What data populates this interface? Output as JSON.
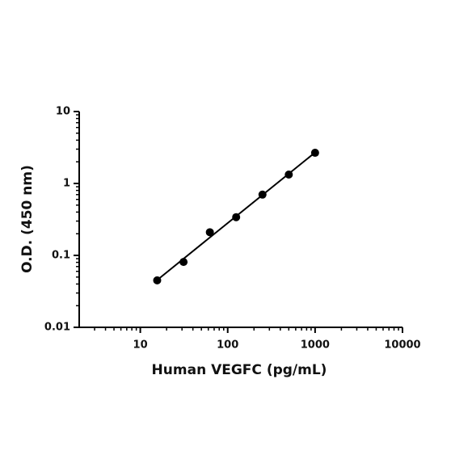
{
  "chart_data": {
    "type": "scatter",
    "x_label": "Human VEGFC (pg/mL)",
    "y_label": "O.D. (450 nm)",
    "x_log": true,
    "y_log": true,
    "fit_line": true,
    "x": [
      15.6,
      31.25,
      62.5,
      125,
      250,
      500,
      1000
    ],
    "values": [
      0.045,
      0.081,
      0.21,
      0.34,
      0.7,
      1.33,
      2.67
    ],
    "color": "#000000",
    "xlim": [
      2,
      10000
    ],
    "xticks": [
      10,
      100,
      1000,
      10000
    ],
    "ylim": [
      0.01,
      10
    ],
    "yticks": [
      0.01,
      0.1,
      1,
      10
    ]
  }
}
